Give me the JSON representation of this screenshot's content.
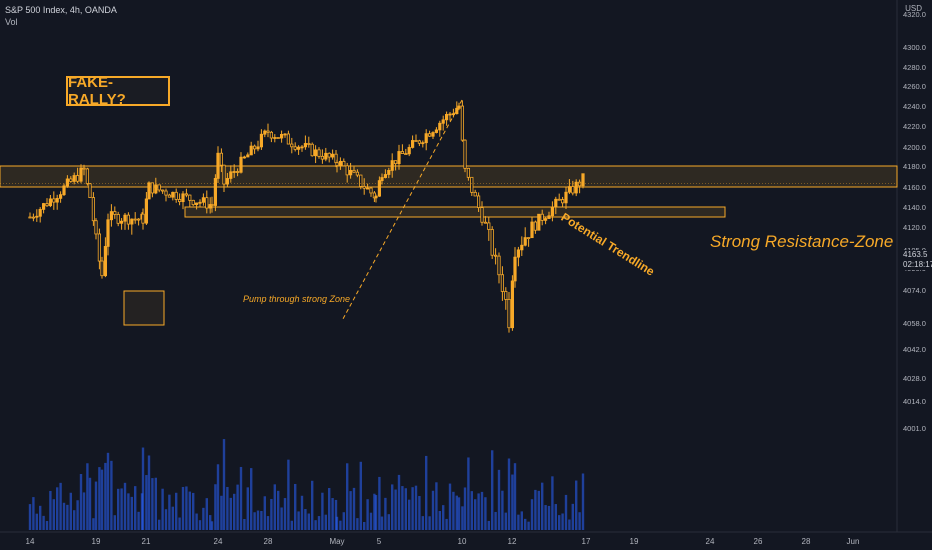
{
  "header": {
    "title": "S&P 500 Index, 4h, OANDA",
    "sub": "Vol",
    "currency": "USD"
  },
  "annotations": {
    "fake_rally": "FAKE-RALLY?",
    "resistance": "Strong Resistance-Zone",
    "pump": "Pump through strong Zone",
    "trendline": "Potential Trendline"
  },
  "price_tag": {
    "price": "4163.5",
    "countdown": "02:18:17"
  },
  "colors": {
    "background": "#131722",
    "candle": "#f7a928",
    "volume": "#2962ff",
    "zone_fill": "rgba(247,169,40,0.12)"
  },
  "chart_data": {
    "type": "candlestick",
    "title": "S&P 500 Index, 4h, OANDA",
    "y_axis_ticks": [
      4320.0,
      4300.0,
      4280.0,
      4260.0,
      4240.0,
      4220.0,
      4200.0,
      4180.0,
      4160.0,
      4140.0,
      4120.0,
      4105.0,
      4090.0,
      4074.0,
      4058.0,
      4042.0,
      4028.0,
      4014.0,
      4001.0
    ],
    "x_axis_ticks": [
      "14",
      "19",
      "21",
      "24",
      "28",
      "May",
      "5",
      "10",
      "12",
      "17",
      "19",
      "24",
      "26",
      "28",
      "Jun"
    ],
    "ylim": [
      4001,
      4320
    ],
    "resistance_zone": [
      4160,
      4180
    ],
    "pump_zone": [
      4130,
      4140
    ],
    "trendline": {
      "from": {
        "label": "10",
        "price": 4246
      },
      "to": {
        "label": "28",
        "price": 4060
      }
    },
    "last_price": 4163.5,
    "price_path": [
      {
        "x": "14",
        "close": 4130
      },
      {
        "x": "19",
        "close": 4176
      },
      {
        "x": "19",
        "close": 4150
      },
      {
        "x": "21",
        "close": 4128
      },
      {
        "x": "21",
        "close": 4160
      },
      {
        "x": "24",
        "close": 4142
      },
      {
        "x": "24",
        "close": 4190
      },
      {
        "x": "28",
        "close": 4215
      },
      {
        "x": "May",
        "close": 4185
      },
      {
        "x": "5",
        "close": 4150
      },
      {
        "x": "5",
        "close": 4175
      },
      {
        "x": "10",
        "close": 4240
      },
      {
        "x": "10",
        "close": 4175
      },
      {
        "x": "12",
        "close": 4060
      },
      {
        "x": "12",
        "close": 4105
      },
      {
        "x": "17",
        "close": 4170
      },
      {
        "x": "19",
        "close": 4110
      },
      {
        "x": "19",
        "close": 4085
      },
      {
        "x": "19",
        "close": 4130
      },
      {
        "x": "24",
        "close": 4163.5
      }
    ]
  }
}
